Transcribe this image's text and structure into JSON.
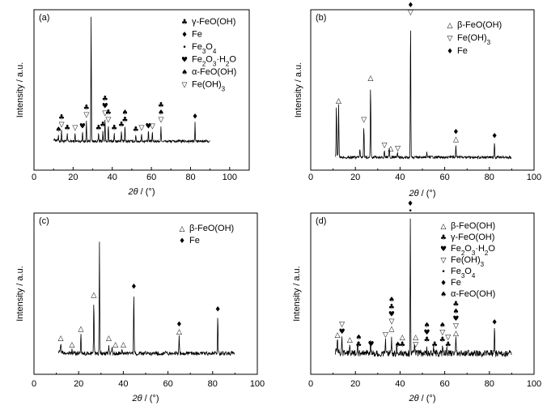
{
  "chart_data": [
    {
      "type": "line",
      "panel_label": "(a)",
      "xlabel": "2θ / (°)",
      "ylabel": "Intensity / a.u.",
      "xlim": [
        0,
        110
      ],
      "xticks": [
        0,
        20,
        40,
        60,
        80,
        100
      ],
      "ylim": [
        0,
        1
      ],
      "legend": [
        {
          "symbol": "♣",
          "label": "γ-FeO(OH)"
        },
        {
          "symbol": "♦",
          "label": "Fe"
        },
        {
          "symbol": "•",
          "label": "Fe3O4"
        },
        {
          "symbol": "♥",
          "label": "Fe2O3·H2O"
        },
        {
          "symbol": "♠",
          "label": "α-FeO(OH)"
        },
        {
          "symbol": "▽",
          "label": "Fe(OH)3"
        }
      ],
      "legend_placement": "top-right",
      "baseline": 0.18,
      "noise": 0.008,
      "x_range": [
        10,
        90
      ],
      "peaks": [
        {
          "x": 12.5,
          "h": 0.04
        },
        {
          "x": 14.1,
          "h": 0.07
        },
        {
          "x": 17.0,
          "h": 0.05
        },
        {
          "x": 21.0,
          "h": 0.05
        },
        {
          "x": 24.8,
          "h": 0.06
        },
        {
          "x": 26.8,
          "h": 0.13
        },
        {
          "x": 29.2,
          "h": 0.78
        },
        {
          "x": 33.0,
          "h": 0.05
        },
        {
          "x": 35.2,
          "h": 0.07
        },
        {
          "x": 36.3,
          "h": 0.14
        },
        {
          "x": 38.0,
          "h": 0.1
        },
        {
          "x": 41.0,
          "h": 0.05
        },
        {
          "x": 44.7,
          "h": 0.07
        },
        {
          "x": 46.5,
          "h": 0.1
        },
        {
          "x": 52.0,
          "h": 0.04
        },
        {
          "x": 55.0,
          "h": 0.05
        },
        {
          "x": 58.5,
          "h": 0.06
        },
        {
          "x": 60.5,
          "h": 0.06
        },
        {
          "x": 64.9,
          "h": 0.1
        },
        {
          "x": 82.3,
          "h": 0.12
        }
      ],
      "markers": [
        {
          "x": 12.5,
          "symbols": [
            "♠"
          ]
        },
        {
          "x": 14.1,
          "symbols": [
            "▽",
            "♣"
          ]
        },
        {
          "x": 17.0,
          "symbols": [
            "♣"
          ]
        },
        {
          "x": 21.0,
          "symbols": [
            "▽"
          ]
        },
        {
          "x": 24.8,
          "symbols": [
            "♥"
          ]
        },
        {
          "x": 26.8,
          "symbols": [
            "▽",
            "♣"
          ]
        },
        {
          "x": 33.0,
          "symbols": [
            "♣"
          ]
        },
        {
          "x": 35.2,
          "symbols": [
            "♣"
          ]
        },
        {
          "x": 36.3,
          "symbols": [
            "▽",
            "♥",
            "♣"
          ]
        },
        {
          "x": 38.0,
          "symbols": [
            "▽",
            "♣"
          ]
        },
        {
          "x": 41.0,
          "symbols": [
            "♣"
          ]
        },
        {
          "x": 44.7,
          "symbols": [
            "♣"
          ]
        },
        {
          "x": 46.5,
          "symbols": [
            "♣",
            "♠"
          ]
        },
        {
          "x": 52.0,
          "symbols": [
            "♣"
          ]
        },
        {
          "x": 55.0,
          "symbols": [
            "▽"
          ]
        },
        {
          "x": 58.5,
          "symbols": [
            "♥"
          ]
        },
        {
          "x": 60.5,
          "symbols": [
            "▽"
          ]
        },
        {
          "x": 64.9,
          "symbols": [
            "▽",
            "♠",
            "♣"
          ]
        },
        {
          "x": 82.3,
          "symbols": [
            "♦"
          ]
        }
      ]
    },
    {
      "type": "line",
      "panel_label": "(b)",
      "xlabel": "2θ / (°)",
      "ylabel": "Intensity / a.u.",
      "xlim": [
        0,
        100
      ],
      "xticks": [
        0,
        20,
        40,
        60,
        80,
        100
      ],
      "ylim": [
        0,
        1
      ],
      "legend": [
        {
          "symbol": "△",
          "label": "β-FeO(OH)"
        },
        {
          "symbol": "▽",
          "label": "Fe(OH)3"
        },
        {
          "symbol": "♦",
          "label": "Fe"
        }
      ],
      "legend_placement": "top-right",
      "baseline": 0.08,
      "noise": 0.008,
      "x_range": [
        11,
        90
      ],
      "peaks": [
        {
          "x": 11.5,
          "h": 0.33
        },
        {
          "x": 12.5,
          "h": 0.32
        },
        {
          "x": 22.0,
          "h": 0.06
        },
        {
          "x": 23.8,
          "h": 0.2
        },
        {
          "x": 26.8,
          "h": 0.46
        },
        {
          "x": 33.0,
          "h": 0.04
        },
        {
          "x": 35.2,
          "h": 0.06
        },
        {
          "x": 38.8,
          "h": 0.03
        },
        {
          "x": 44.7,
          "h": 0.87
        },
        {
          "x": 52.0,
          "h": 0.03
        },
        {
          "x": 65.0,
          "h": 0.08
        },
        {
          "x": 82.3,
          "h": 0.1
        }
      ],
      "markers": [
        {
          "x": 12.5,
          "symbols": [
            "△"
          ]
        },
        {
          "x": 23.8,
          "symbols": [
            "▽"
          ]
        },
        {
          "x": 26.8,
          "symbols": [
            "△"
          ]
        },
        {
          "x": 33.0,
          "symbols": [
            "▽"
          ]
        },
        {
          "x": 35.8,
          "symbols": [
            "△"
          ]
        },
        {
          "x": 39.0,
          "symbols": [
            "▽"
          ]
        },
        {
          "x": 44.7,
          "symbols": [
            "▽",
            "♦"
          ]
        },
        {
          "x": 65.0,
          "symbols": [
            "△",
            "♦"
          ]
        },
        {
          "x": 82.3,
          "symbols": [
            "♦"
          ]
        }
      ]
    },
    {
      "type": "line",
      "panel_label": "(c)",
      "xlabel": "2θ / (°)",
      "ylabel": "Intensity / a.u.",
      "xlim": [
        0,
        100
      ],
      "xticks": [
        0,
        20,
        40,
        60,
        80,
        100
      ],
      "ylim": [
        0,
        1
      ],
      "legend": [
        {
          "symbol": "△",
          "label": "β-FeO(OH)"
        },
        {
          "symbol": "♦",
          "label": "Fe"
        }
      ],
      "legend_placement": "top-right",
      "baseline": 0.13,
      "noise": 0.012,
      "x_range": [
        11,
        90
      ],
      "peaks": [
        {
          "x": 12.0,
          "h": 0.06
        },
        {
          "x": 17.0,
          "h": 0.02
        },
        {
          "x": 21.0,
          "h": 0.12
        },
        {
          "x": 26.8,
          "h": 0.33
        },
        {
          "x": 29.3,
          "h": 0.7
        },
        {
          "x": 33.5,
          "h": 0.06
        },
        {
          "x": 35.0,
          "h": 0.05
        },
        {
          "x": 39.5,
          "h": 0.03
        },
        {
          "x": 44.7,
          "h": 0.38
        },
        {
          "x": 65.0,
          "h": 0.1
        },
        {
          "x": 82.3,
          "h": 0.24
        }
      ],
      "markers": [
        {
          "x": 12.0,
          "symbols": [
            "△"
          ]
        },
        {
          "x": 17.0,
          "symbols": [
            "△"
          ]
        },
        {
          "x": 21.0,
          "symbols": [
            "△"
          ]
        },
        {
          "x": 26.8,
          "symbols": [
            "△"
          ]
        },
        {
          "x": 33.5,
          "symbols": [
            "△"
          ]
        },
        {
          "x": 36.5,
          "symbols": [
            "△"
          ]
        },
        {
          "x": 40.0,
          "symbols": [
            "△"
          ]
        },
        {
          "x": 44.7,
          "symbols": [
            "♦"
          ]
        },
        {
          "x": 65.0,
          "symbols": [
            "△",
            "♦"
          ]
        },
        {
          "x": 82.3,
          "symbols": [
            "♦"
          ]
        }
      ]
    },
    {
      "type": "line",
      "panel_label": "(d)",
      "xlabel": "2θ / (°)",
      "ylabel": "Intensity / a.u.",
      "xlim": [
        0,
        100
      ],
      "xticks": [
        0,
        20,
        40,
        60,
        80,
        100
      ],
      "ylim": [
        0,
        1
      ],
      "legend": [
        {
          "symbol": "△",
          "label": "β-FeO(OH)"
        },
        {
          "symbol": "♣",
          "label": "γ-FeO(OH)"
        },
        {
          "symbol": "♥",
          "label": "Fe2O3·H2O"
        },
        {
          "symbol": "▽",
          "label": "Fe(OH)3"
        },
        {
          "symbol": "•",
          "label": "Fe3O4"
        },
        {
          "symbol": "♦",
          "label": "Fe"
        },
        {
          "symbol": "♠",
          "label": "α-FeO(OH)"
        }
      ],
      "legend_placement": "top-right",
      "baseline": 0.13,
      "noise": 0.02,
      "x_range": [
        11,
        90
      ],
      "peaks": [
        {
          "x": 12.0,
          "h": 0.08
        },
        {
          "x": 14.0,
          "h": 0.1
        },
        {
          "x": 17.5,
          "h": 0.05
        },
        {
          "x": 21.0,
          "h": 0.06
        },
        {
          "x": 26.8,
          "h": 0.09
        },
        {
          "x": 33.5,
          "h": 0.08
        },
        {
          "x": 36.2,
          "h": 0.12
        },
        {
          "x": 38.5,
          "h": 0.05
        },
        {
          "x": 44.6,
          "h": 0.85
        },
        {
          "x": 46.5,
          "h": 0.06
        },
        {
          "x": 52.0,
          "h": 0.05
        },
        {
          "x": 55.0,
          "h": 0.04
        },
        {
          "x": 59.0,
          "h": 0.05
        },
        {
          "x": 61.0,
          "h": 0.04
        },
        {
          "x": 65.0,
          "h": 0.09
        },
        {
          "x": 82.3,
          "h": 0.16
        }
      ],
      "markers": [
        {
          "x": 12.0,
          "symbols": [
            "△"
          ]
        },
        {
          "x": 14.0,
          "symbols": [
            "♥",
            "▽"
          ]
        },
        {
          "x": 17.5,
          "symbols": [
            "△"
          ]
        },
        {
          "x": 21.5,
          "symbols": [
            "♣",
            "♠"
          ]
        },
        {
          "x": 27.0,
          "symbols": [
            "♥"
          ]
        },
        {
          "x": 33.5,
          "symbols": [
            "▽"
          ]
        },
        {
          "x": 36.2,
          "symbols": [
            "△",
            "▽",
            "♥",
            "♣",
            "♠"
          ]
        },
        {
          "x": 39.0,
          "symbols": [
            "♠"
          ]
        },
        {
          "x": 41.0,
          "symbols": [
            "♣",
            "△"
          ]
        },
        {
          "x": 44.6,
          "symbols": [
            "•",
            "♦"
          ]
        },
        {
          "x": 47.0,
          "symbols": [
            "▽",
            "△"
          ]
        },
        {
          "x": 52.0,
          "symbols": [
            "♣",
            "♥",
            "♠"
          ]
        },
        {
          "x": 55.5,
          "symbols": [
            "♣"
          ]
        },
        {
          "x": 59.0,
          "symbols": [
            "♣",
            "▽",
            "♠"
          ]
        },
        {
          "x": 61.5,
          "symbols": [
            "♣",
            "▽"
          ]
        },
        {
          "x": 65.0,
          "symbols": [
            "△",
            "▽",
            "♥",
            "♠",
            "♣"
          ]
        },
        {
          "x": 82.3,
          "symbols": [
            "♦"
          ]
        }
      ]
    }
  ]
}
